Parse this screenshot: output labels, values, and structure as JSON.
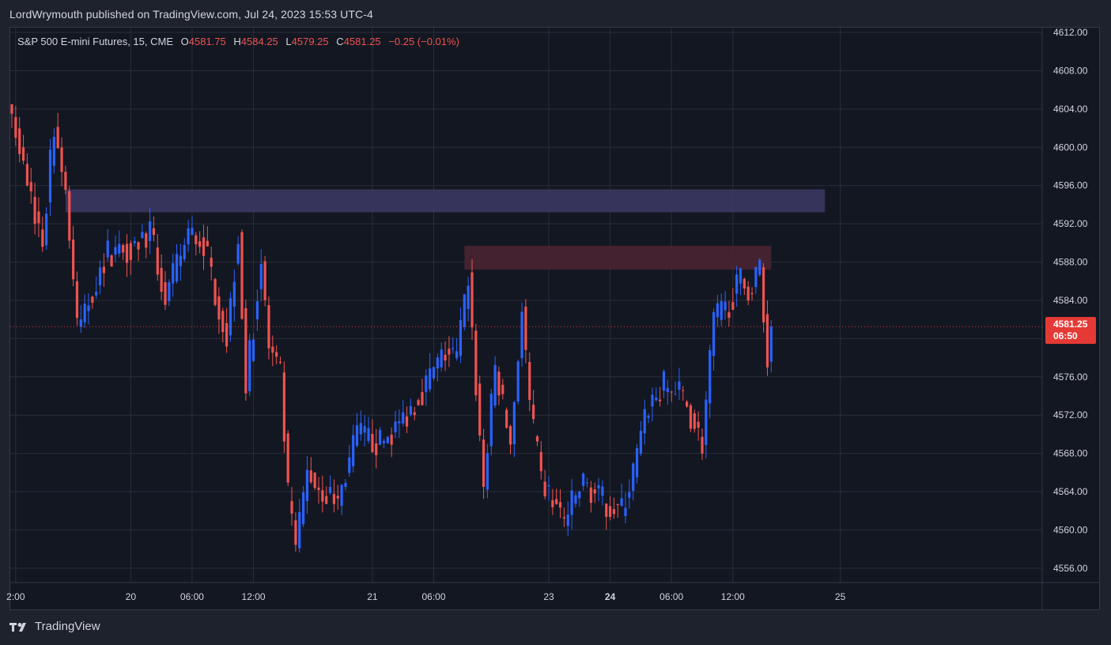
{
  "header": {
    "published_text": "LordWrymouth published on TradingView.com, Jul 24, 2023 15:53 UTC-4"
  },
  "legend": {
    "symbol": "S&P 500 E-mini Futures, 15, CME",
    "open_label": "O",
    "open_value": "4581.75",
    "high_label": "H",
    "high_value": "4584.25",
    "low_label": "L",
    "low_value": "4579.25",
    "close_label": "C",
    "close_value": "4581.25",
    "change": "−0.25 (−0.01%)"
  },
  "last_price": {
    "price": "4581.25",
    "countdown": "06:50"
  },
  "footer": {
    "brand": "TradingView"
  },
  "colors": {
    "up": "#2962ff",
    "down": "#ef5350",
    "bg": "#131722",
    "grid": "#2a2e39",
    "text": "#d1d4dc",
    "zone_upper": "#3b3760",
    "zone_lower": "#4a2331",
    "price_tag": "#e53935"
  },
  "chart_data": {
    "type": "candlestick",
    "title": "S&P 500 E-mini Futures, 15, CME",
    "ylim": [
      4554.5,
      4612.5
    ],
    "y_ticks": [
      4612,
      4608,
      4604,
      4600,
      4596,
      4592,
      4588,
      4584,
      4580,
      4576,
      4572,
      4568,
      4564,
      4560,
      4556
    ],
    "x_ticks": [
      {
        "label": "2:00",
        "bar": 1,
        "bold": false
      },
      {
        "label": "20",
        "bar": 31,
        "bold": false
      },
      {
        "label": "06:00",
        "bar": 47,
        "bold": false
      },
      {
        "label": "12:00",
        "bar": 63,
        "bold": false
      },
      {
        "label": "21",
        "bar": 94,
        "bold": false
      },
      {
        "label": "06:00",
        "bar": 110,
        "bold": false
      },
      {
        "label": "23",
        "bar": 140,
        "bold": false
      },
      {
        "label": "24",
        "bar": 156,
        "bold": true
      },
      {
        "label": "06:00",
        "bar": 172,
        "bold": false
      },
      {
        "label": "12:00",
        "bar": 188,
        "bold": false
      },
      {
        "label": "25",
        "bar": 216,
        "bold": false
      }
    ],
    "zones": [
      {
        "name": "upper supply zone",
        "x_from_bar": 14,
        "x_to_bar": 212,
        "low": 4593.2,
        "high": 4595.6
      },
      {
        "name": "lower supply zone",
        "x_from_bar": 118,
        "x_to_bar": 198,
        "low": 4587.2,
        "high": 4589.7
      }
    ],
    "last_price_line": 4581.25,
    "anchors": [
      {
        "bar": 0,
        "price": 4603.5
      },
      {
        "bar": 3,
        "price": 4598
      },
      {
        "bar": 8,
        "price": 4590
      },
      {
        "bar": 11,
        "price": 4602.5
      },
      {
        "bar": 14,
        "price": 4595.5
      },
      {
        "bar": 17,
        "price": 4581
      },
      {
        "bar": 25,
        "price": 4589
      },
      {
        "bar": 30,
        "price": 4589.5
      },
      {
        "bar": 36,
        "price": 4591
      },
      {
        "bar": 40,
        "price": 4584
      },
      {
        "bar": 46,
        "price": 4591
      },
      {
        "bar": 50,
        "price": 4590
      },
      {
        "bar": 56,
        "price": 4580
      },
      {
        "bar": 59,
        "price": 4591
      },
      {
        "bar": 61,
        "price": 4575
      },
      {
        "bar": 65,
        "price": 4588
      },
      {
        "bar": 67,
        "price": 4579
      },
      {
        "bar": 70,
        "price": 4576
      },
      {
        "bar": 72,
        "price": 4563.5
      },
      {
        "bar": 74,
        "price": 4558
      },
      {
        "bar": 77,
        "price": 4566
      },
      {
        "bar": 81,
        "price": 4564
      },
      {
        "bar": 85,
        "price": 4563
      },
      {
        "bar": 90,
        "price": 4570
      },
      {
        "bar": 96,
        "price": 4569
      },
      {
        "bar": 101,
        "price": 4571
      },
      {
        "bar": 106,
        "price": 4574
      },
      {
        "bar": 113,
        "price": 4578.5
      },
      {
        "bar": 116,
        "price": 4578
      },
      {
        "bar": 119,
        "price": 4586.5
      },
      {
        "bar": 121,
        "price": 4575
      },
      {
        "bar": 123,
        "price": 4564.5
      },
      {
        "bar": 126,
        "price": 4577
      },
      {
        "bar": 130,
        "price": 4569
      },
      {
        "bar": 133,
        "price": 4583
      },
      {
        "bar": 135,
        "price": 4573
      },
      {
        "bar": 138,
        "price": 4565
      },
      {
        "bar": 144,
        "price": 4561
      },
      {
        "bar": 149,
        "price": 4565
      },
      {
        "bar": 154,
        "price": 4563
      },
      {
        "bar": 159,
        "price": 4562
      },
      {
        "bar": 162,
        "price": 4566
      },
      {
        "bar": 166,
        "price": 4573
      },
      {
        "bar": 170,
        "price": 4575
      },
      {
        "bar": 175,
        "price": 4574
      },
      {
        "bar": 180,
        "price": 4569
      },
      {
        "bar": 183,
        "price": 4582
      },
      {
        "bar": 186,
        "price": 4583
      },
      {
        "bar": 190,
        "price": 4586
      },
      {
        "bar": 193,
        "price": 4585
      },
      {
        "bar": 195,
        "price": 4588
      },
      {
        "bar": 196,
        "price": 4582
      },
      {
        "bar": 197,
        "price": 4578
      },
      {
        "bar": 198,
        "price": 4581.25
      }
    ]
  }
}
